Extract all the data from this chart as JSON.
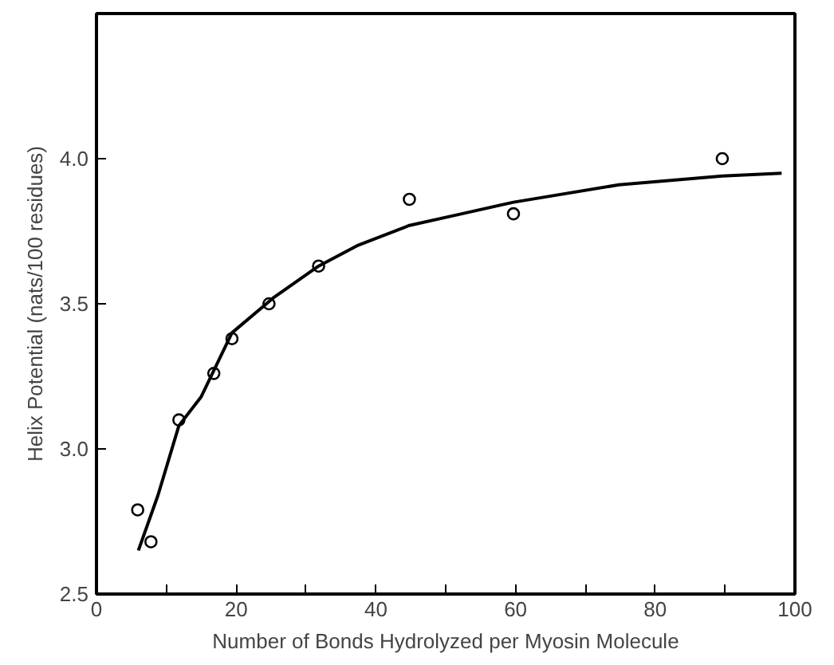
{
  "chart_data": {
    "type": "scatter",
    "xlabel": "Number of Bonds Hydrolyzed per Myosin Molecule",
    "ylabel": "Helix Potential (nats/100 residues)",
    "xlim": [
      0,
      100
    ],
    "ylim": [
      2.5,
      4.5
    ],
    "xticks": [
      0,
      {
        "value": 10,
        "label": null
      },
      20,
      {
        "value": 30,
        "label": null
      },
      40,
      {
        "value": 50,
        "label": null
      },
      60,
      {
        "value": 70,
        "label": null
      },
      80,
      {
        "value": 90,
        "label": null
      },
      100
    ],
    "yticks": [
      2.5,
      {
        "value": 3,
        "label": "3.0"
      },
      3.5,
      {
        "value": 4,
        "label": "4.0"
      }
    ],
    "grid": false,
    "marker": "circle",
    "series": [
      {
        "color": "#000000",
        "x": [
          5.9,
          7.8,
          11.8,
          16.8,
          19.4,
          24.7,
          31.8,
          44.8,
          59.7,
          89.6
        ],
        "values": [
          2.79,
          2.68,
          3.1,
          3.26,
          3.38,
          3.5,
          3.63,
          3.86,
          3.81,
          4.0
        ]
      },
      {
        "type": "line",
        "color": "#000000",
        "marker": "none",
        "line_style": "solid",
        "x": [
          6.0,
          8.8,
          11.8,
          15,
          19.4,
          25.3,
          31.8,
          37.3,
          44.8,
          52.3,
          59.7,
          74.8,
          89.6,
          98.1
        ],
        "values": [
          2.65,
          2.84,
          3.08,
          3.18,
          3.4,
          3.52,
          3.63,
          3.7,
          3.77,
          3.81,
          3.85,
          3.91,
          3.94,
          3.95
        ]
      }
    ]
  }
}
